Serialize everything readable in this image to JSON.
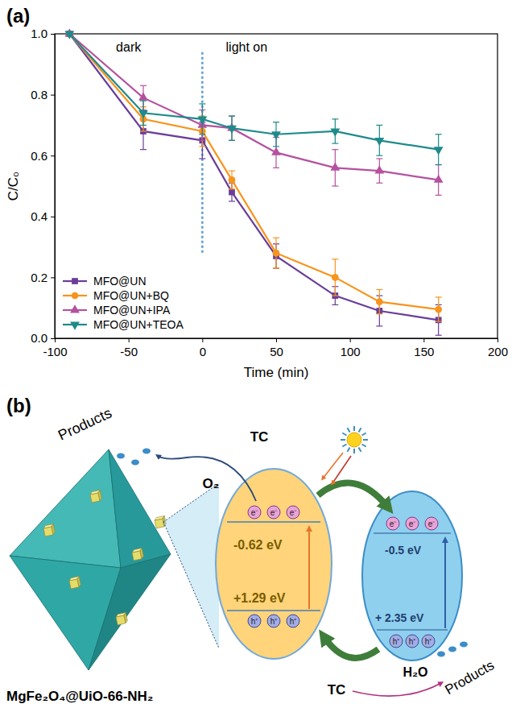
{
  "chart_data": {
    "type": "line",
    "panel_label": "(a)",
    "x_label": "Time (min)",
    "y_label": "C/C₀",
    "annotations": [
      "dark",
      "light on"
    ],
    "light_on_x": 0,
    "x": [
      -90,
      -40,
      0,
      20,
      50,
      90,
      120,
      160
    ],
    "xlim": [
      -100,
      200
    ],
    "xticks": [
      -100,
      -50,
      0,
      50,
      100,
      150,
      200
    ],
    "ylim": [
      0,
      1
    ],
    "yticks": [
      {
        "value": 0,
        "label": "0.0"
      },
      0.2,
      0.4,
      0.6,
      0.8,
      {
        "value": 1,
        "label": "1.0"
      }
    ],
    "grid": false,
    "legend": "lower left",
    "series": [
      {
        "name": "MFO@UN",
        "color": "#6a3d9a",
        "marker": "square",
        "line_style": "solid",
        "values": [
          1.0,
          0.68,
          0.65,
          0.48,
          0.27,
          0.14,
          0.09,
          0.06
        ],
        "errors": [
          0,
          0.06,
          0.06,
          0.03,
          0.04,
          0.03,
          0.05,
          0.05
        ]
      },
      {
        "name": "MFO@UN+BQ",
        "color": "#f7941d",
        "marker": "circle",
        "line_style": "solid",
        "values": [
          1.0,
          0.72,
          0.68,
          0.52,
          0.28,
          0.2,
          0.12,
          0.095
        ],
        "errors": [
          0,
          0.04,
          0.05,
          0.03,
          0.05,
          0.06,
          0.04,
          0.04
        ]
      },
      {
        "name": "MFO@UN+IPA",
        "color": "#b5519e",
        "marker": "triangle-up",
        "line_style": "solid",
        "values": [
          1.0,
          0.79,
          0.7,
          0.69,
          0.61,
          0.56,
          0.55,
          0.52
        ],
        "errors": [
          0,
          0.04,
          0.05,
          0.04,
          0.05,
          0.06,
          0.04,
          0.05
        ]
      },
      {
        "name": "MFO@UN+TEOA",
        "color": "#1f8a8a",
        "marker": "triangle-down",
        "line_style": "solid",
        "values": [
          1.0,
          0.74,
          0.72,
          0.69,
          0.67,
          0.68,
          0.65,
          0.62
        ],
        "errors": [
          0,
          0.04,
          0.05,
          0.04,
          0.04,
          0.04,
          0.05,
          0.05
        ]
      }
    ]
  },
  "diagram": {
    "panel_label": "(b)",
    "composite": "MgFe₂O₄@UiO-66-NH₂",
    "left_semiconductor": {
      "cb": "-0.62 eV",
      "vb": "+1.29 eV"
    },
    "right_semiconductor": {
      "cb": "-0.5 eV",
      "vb": "+ 2.35 eV"
    },
    "electron": "e⁻",
    "hole": "h⁺",
    "reactions": [
      {
        "reactant": "TC",
        "oxidant": "O₂",
        "product": "Products"
      },
      {
        "reactant": "TC",
        "oxidant": "H₂O",
        "product": "Products"
      }
    ]
  }
}
